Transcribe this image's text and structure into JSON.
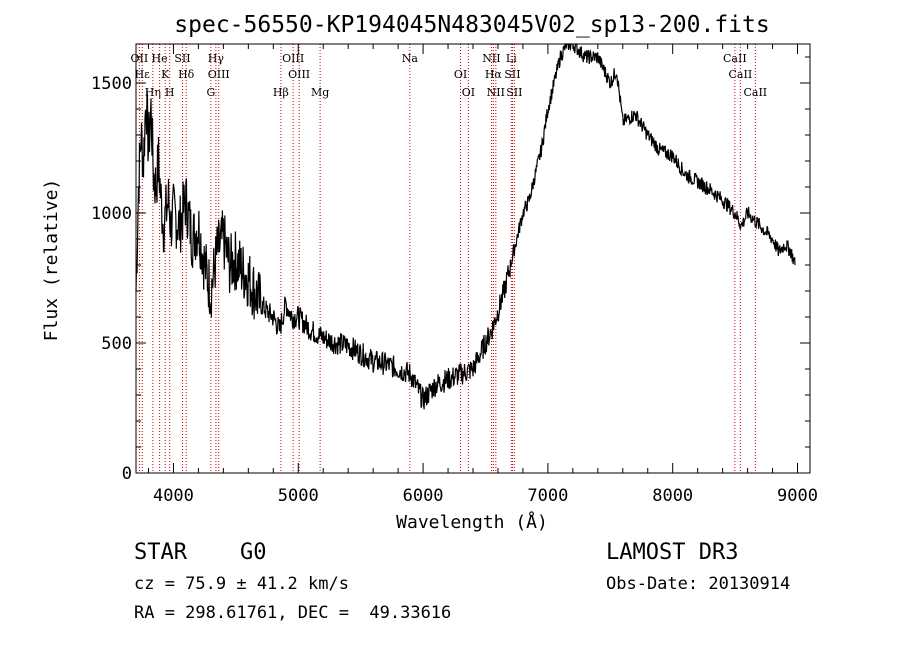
{
  "chart_data": {
    "type": "line",
    "title": "spec-56550-KP194045N483045V02_sp13-200.fits",
    "xlabel": "Wavelength (Å)",
    "ylabel": "Flux (relative)",
    "xlim": [
      3700,
      9100
    ],
    "ylim": [
      0,
      1650
    ],
    "x_ticks": [
      "4000",
      "5000",
      "6000",
      "7000",
      "8000",
      "9000"
    ],
    "y_ticks": [
      "0",
      "500",
      "1000",
      "1500"
    ],
    "grid": false,
    "colors": {
      "line": "#000000",
      "marker": "#cc0000",
      "axis": "#000000"
    },
    "series": [
      {
        "x": [
          3700,
          3720,
          3740,
          3760,
          3780,
          3800,
          3820,
          3840,
          3860,
          3880,
          3900,
          3920,
          3940,
          3960,
          3980,
          4000,
          4050,
          4100,
          4150,
          4200,
          4250,
          4300,
          4350,
          4400,
          4450,
          4500,
          4550,
          4600,
          4650,
          4700,
          4750,
          4800,
          4850,
          4900,
          4950,
          5000,
          5100,
          5200,
          5300,
          5400,
          5500,
          5600,
          5700,
          5800,
          5900,
          6000,
          6100,
          6200,
          6300,
          6400,
          6450,
          6500,
          6550,
          6600,
          6650,
          6700,
          6750,
          6800,
          6850,
          6900,
          6950,
          7000,
          7050,
          7100,
          7150,
          7200,
          7300,
          7400,
          7500,
          7550,
          7600,
          7700,
          7800,
          7900,
          8000,
          8100,
          8200,
          8300,
          8400,
          8500,
          8550,
          8600,
          8700,
          8800,
          8850,
          8900,
          8950,
          8980
        ],
        "y": [
          700,
          1100,
          1300,
          1200,
          1450,
          1250,
          1400,
          1150,
          1100,
          1200,
          1050,
          950,
          1000,
          1050,
          950,
          1000,
          950,
          1050,
          900,
          950,
          800,
          700,
          850,
          900,
          800,
          820,
          780,
          750,
          700,
          650,
          620,
          600,
          550,
          650,
          600,
          600,
          550,
          520,
          500,
          490,
          460,
          430,
          420,
          400,
          380,
          280,
          340,
          360,
          380,
          400,
          450,
          500,
          550,
          620,
          700,
          800,
          900,
          1000,
          1050,
          1150,
          1250,
          1400,
          1500,
          1600,
          1650,
          1650,
          1600,
          1600,
          1500,
          1550,
          1350,
          1380,
          1300,
          1240,
          1220,
          1150,
          1120,
          1090,
          1050,
          1000,
          950,
          1000,
          950,
          900,
          850,
          880,
          850,
          800
        ]
      }
    ],
    "lines": [
      {
        "x": 3727,
        "label": "OII"
      },
      {
        "x": 3750,
        "label": "Hε"
      },
      {
        "x": 3835,
        "label": "Hη"
      },
      {
        "x": 3889,
        "label": "He"
      },
      {
        "x": 3934,
        "label": "K"
      },
      {
        "x": 3970,
        "label": "H"
      },
      {
        "x": 4072,
        "label": "SII"
      },
      {
        "x": 4102,
        "label": "Hδ"
      },
      {
        "x": 4300,
        "label": "G"
      },
      {
        "x": 4340,
        "label": "Hγ"
      },
      {
        "x": 4363,
        "label": "OIII"
      },
      {
        "x": 4861,
        "label": "Hβ"
      },
      {
        "x": 4959,
        "label": "OIII"
      },
      {
        "x": 5007,
        "label": "OIII"
      },
      {
        "x": 5175,
        "label": "Mg"
      },
      {
        "x": 5894,
        "label": "Na"
      },
      {
        "x": 6300,
        "label": "OI"
      },
      {
        "x": 6363,
        "label": "OI"
      },
      {
        "x": 6548,
        "label": "NII"
      },
      {
        "x": 6563,
        "label": "Hα"
      },
      {
        "x": 6583,
        "label": "NII"
      },
      {
        "x": 6707,
        "label": "Li"
      },
      {
        "x": 6716,
        "label": "SII"
      },
      {
        "x": 6731,
        "label": "SII"
      },
      {
        "x": 8498,
        "label": "CaII"
      },
      {
        "x": 8542,
        "label": "CaII"
      },
      {
        "x": 8662,
        "label": "CaII"
      }
    ]
  },
  "info": {
    "class": "STAR",
    "subclass": "G0",
    "survey": "LAMOST DR3",
    "cz": "cz = 75.9 ± 41.2 km/s",
    "obs_date": "Obs-Date: 20130914",
    "radec": "RA = 298.61761, DEC =  49.33616"
  }
}
